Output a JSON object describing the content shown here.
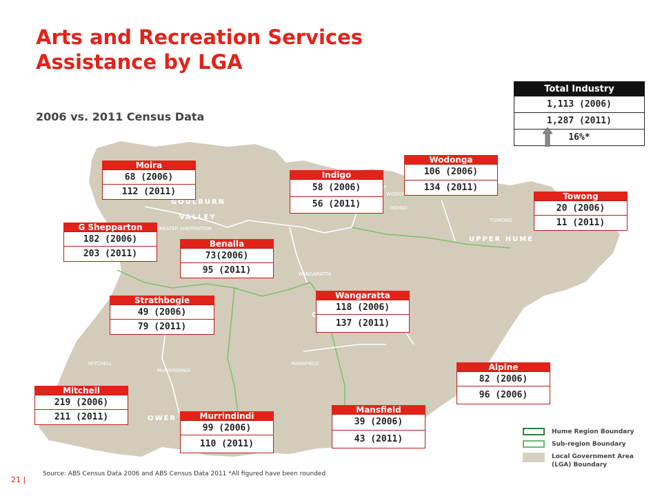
{
  "title_line1": "Arts and Recreation Services",
  "title_line2": "Assistance by LGA",
  "subtitle": "2006 vs. 2011 Census Data",
  "total": {
    "header": "Total Industry",
    "rows": [
      "1,113 (2006)",
      "1,287 (2011)",
      "16%*"
    ]
  },
  "lgas": {
    "moira": {
      "name": "Moira",
      "r1": "68 (2006)",
      "r2": "112 (2011)"
    },
    "indigo": {
      "name": "Indigo",
      "r1": "58 (2006)",
      "r2": "56 (2011)"
    },
    "wodonga": {
      "name": "Wodonga",
      "r1": "106 (2006)",
      "r2": "134 (2011)"
    },
    "towong": {
      "name": "Towong",
      "r1": "20 (2006)",
      "r2": "11 (2011)"
    },
    "g_shepparton": {
      "name": "G Shepparton",
      "r1": "182 (2006)",
      "r2": "203 (2011)"
    },
    "benalla": {
      "name": "Benalla",
      "r1": "73(2006)",
      "r2": "95 (2011)"
    },
    "strathbogie": {
      "name": "Strathbogie",
      "r1": "49 (2006)",
      "r2": "79 (2011)"
    },
    "wangaratta": {
      "name": "Wangaratta",
      "r1": "118 (2006)",
      "r2": "137 (2011)"
    },
    "alpine": {
      "name": "Alpine",
      "r1": "82 (2006)",
      "r2": "96 (2006)"
    },
    "mitchell": {
      "name": "Mitchell",
      "r1": "219 (2006)",
      "r2": "211 (2011)"
    },
    "murrindindi": {
      "name": "Murrindindi",
      "r1": "99 (2006)",
      "r2": "110 (2011)"
    },
    "mansfield": {
      "name": "Mansfield",
      "r1": "39 (2006)",
      "r2": "43 (2011)"
    }
  },
  "map_labels": {
    "goulburn": "GOULBURN",
    "valley": "VALLEY",
    "upper_hume": "UPPER HUME",
    "lower_hume": "OWER HUME",
    "greater_shepparton": "GREATER SHEPPARTON",
    "indigo": "INDIGO",
    "towong": "TOWONG",
    "wangaratta": "WANGARATTA",
    "mitchell": "MITCHELL",
    "murrindindi": "MURRINDINDI",
    "mansfield": "MANSFIELD",
    "wodonga": "WODONGA",
    "central": "CEN"
  },
  "legend": {
    "hume": "Hume Region Boundary",
    "subregion": "Sub-region Boundary",
    "lga_line1": "Local Government Area",
    "lga_line2": "(LGA) Boundary",
    "colors": {
      "hume": "#2e7d32",
      "subregion": "#66bb6a",
      "lga": "#d8d1c2"
    }
  },
  "source": "Source: ABS Census Data 2006 and ABS Census Data 2011 *All figured have been rounded",
  "page_number": "21 |",
  "colors": {
    "accent": "#e2231a",
    "map_fill": "#d3ccbb",
    "dark": "#111111"
  }
}
